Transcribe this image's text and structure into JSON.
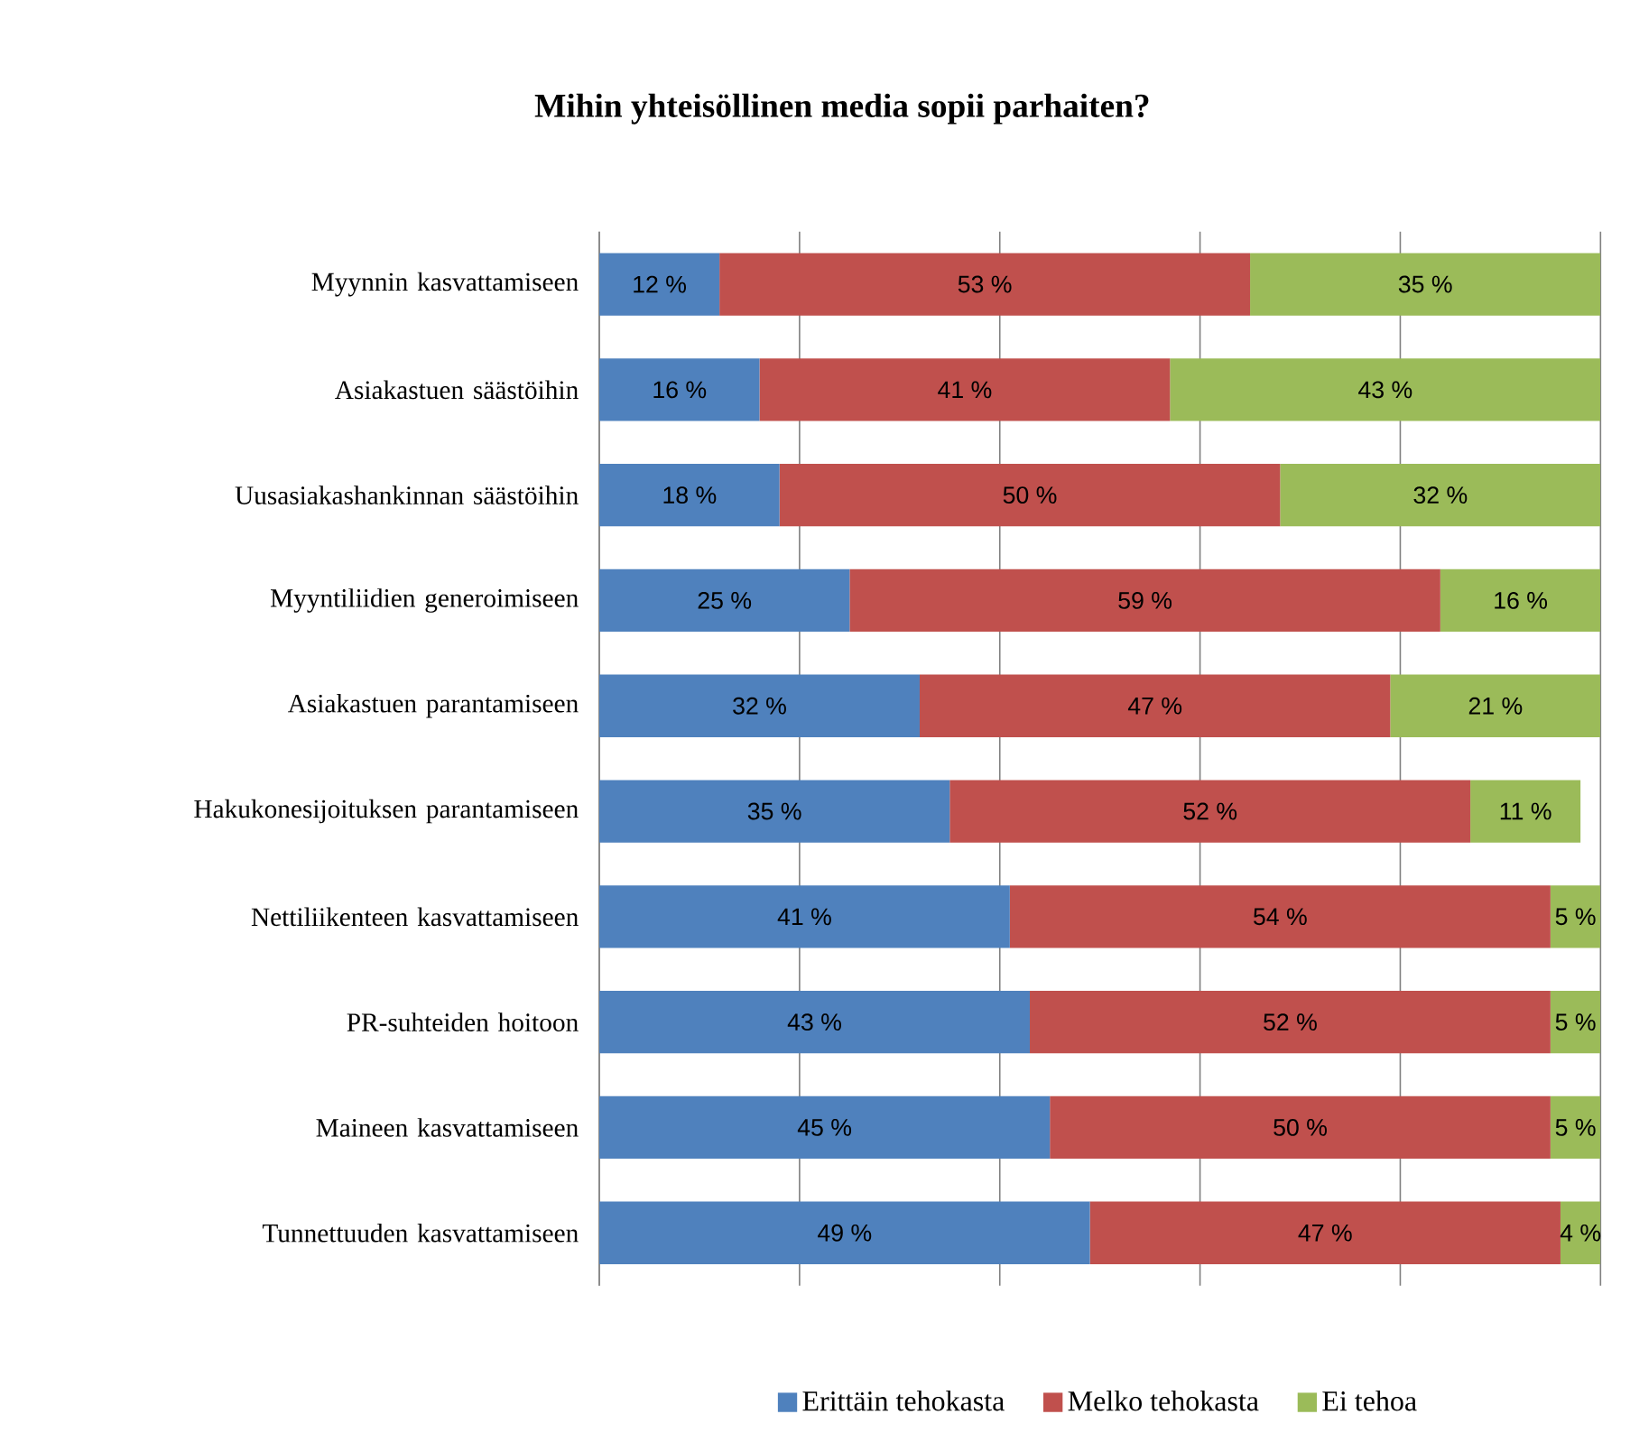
{
  "chart_data": {
    "type": "bar",
    "orientation": "horizontal",
    "stacked": true,
    "title": "Mihin yhteisöllinen media sopii parhaiten?",
    "categories": [
      "Myynnin kasvattamiseen",
      "Asiakastuen säästöihin",
      "Uusasiakashankinnan säästöihin",
      "Myyntiliidien generoimiseen",
      "Asiakastuen parantamiseen",
      "Hakukonesijoituksen parantamiseen",
      "Nettiliikenteen kasvattamiseen",
      "PR-suhteiden hoitoon",
      "Maineen kasvattamiseen",
      "Tunnettuuden kasvattamiseen"
    ],
    "series": [
      {
        "name": "Erittäin tehokasta",
        "color": "#4f81bd",
        "values": [
          12,
          16,
          18,
          25,
          32,
          35,
          41,
          43,
          45,
          49
        ],
        "value_labels": [
          "12 %",
          "16 %",
          "18 %",
          "25 %",
          "32 %",
          "35 %",
          "41 %",
          "43 %",
          "45 %",
          "49 %"
        ]
      },
      {
        "name": "Melko tehokasta",
        "color": "#c0504d",
        "values": [
          53,
          41,
          50,
          59,
          47,
          52,
          54,
          52,
          50,
          47
        ],
        "value_labels": [
          "53 %",
          "41 %",
          "50 %",
          "59 %",
          "47 %",
          "52 %",
          "54 %",
          "52 %",
          "50 %",
          "47 %"
        ]
      },
      {
        "name": "Ei tehoa",
        "color": "#9bbb59",
        "values": [
          35,
          43,
          32,
          16,
          21,
          11,
          5,
          5,
          5,
          4
        ],
        "value_labels": [
          "35 %",
          "43 %",
          "32 %",
          "16 %",
          "21 %",
          "11 %",
          "5 %",
          "5 %",
          "5 %",
          "4 %"
        ]
      }
    ],
    "xlim": [
      0,
      100
    ],
    "xticks": [
      {
        "value": 0,
        "label": null
      },
      {
        "value": 20,
        "label": null
      },
      {
        "value": 40,
        "label": null
      },
      {
        "value": 60,
        "label": null
      },
      {
        "value": 80,
        "label": null
      },
      {
        "value": 100,
        "label": null
      }
    ],
    "tick_labels": "y",
    "grid": "x",
    "legend": "bottom"
  }
}
